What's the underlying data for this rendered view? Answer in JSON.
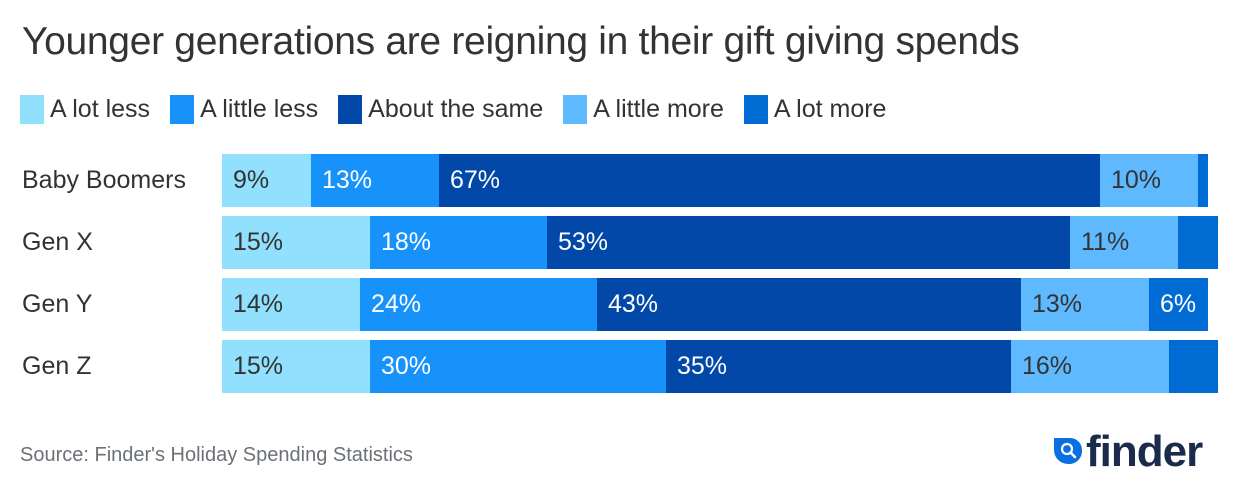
{
  "title": "Younger generations are reigning in their gift giving spends",
  "source": "Source: Finder's Holiday Spending Statistics",
  "logo": {
    "text": "finder",
    "icon": "magnifier-drop-icon",
    "accent": "#0a6fe0",
    "text_color": "#1b2b4b"
  },
  "chart_data": {
    "type": "bar",
    "orientation": "horizontal",
    "stacked": true,
    "title": "Younger generations are reigning in their gift giving spends",
    "xlabel": "",
    "ylabel": "",
    "xlim": [
      0,
      100
    ],
    "grid": false,
    "legend_position": "top-left",
    "categories": [
      "Baby Boomers",
      "Gen X",
      "Gen Y",
      "Gen Z"
    ],
    "series": [
      {
        "name": "A lot less",
        "color": "#91e0fd",
        "label_color": "#333333",
        "values": [
          9,
          15,
          14,
          15
        ],
        "labels": [
          "9%",
          "15%",
          "14%",
          "15%"
        ]
      },
      {
        "name": "A little less",
        "color": "#1892fb",
        "label_color": "#ffffff",
        "values": [
          13,
          18,
          24,
          30
        ],
        "labels": [
          "13%",
          "18%",
          "24%",
          "30%"
        ]
      },
      {
        "name": "About the same",
        "color": "#0148a8",
        "label_color": "#ffffff",
        "values": [
          67,
          53,
          43,
          35
        ],
        "labels": [
          "67%",
          "53%",
          "43%",
          "35%"
        ]
      },
      {
        "name": "A little more",
        "color": "#5eb9fe",
        "label_color": "#333333",
        "values": [
          10,
          11,
          13,
          16
        ],
        "labels": [
          "10%",
          "11%",
          "13%",
          "16%"
        ]
      },
      {
        "name": "A lot more",
        "color": "#006bd3",
        "label_color": "#ffffff",
        "values": [
          1,
          4,
          6,
          5
        ],
        "labels": [
          "",
          "",
          "6%",
          ""
        ]
      }
    ],
    "source": "Source: Finder's Holiday Spending Statistics"
  }
}
